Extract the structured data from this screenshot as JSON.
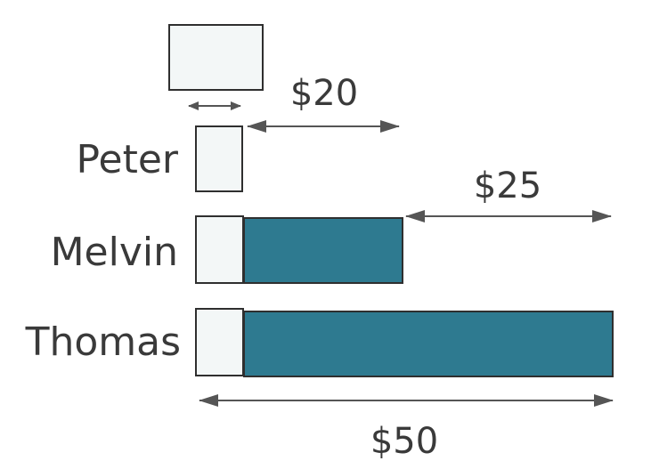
{
  "diagram": {
    "names": {
      "peter": "Peter",
      "melvin": "Melvin",
      "thomas": "Thomas"
    },
    "amounts": {
      "peter_to_melvin": "$20",
      "melvin_to_thomas": "$25",
      "total": "$50"
    },
    "colors": {
      "unit_fill": "#f3f7f7",
      "bar_fill": "#2e7a90",
      "outline": "#2f2f2f",
      "arrow": "#555555",
      "text": "#3a3a3a"
    }
  }
}
